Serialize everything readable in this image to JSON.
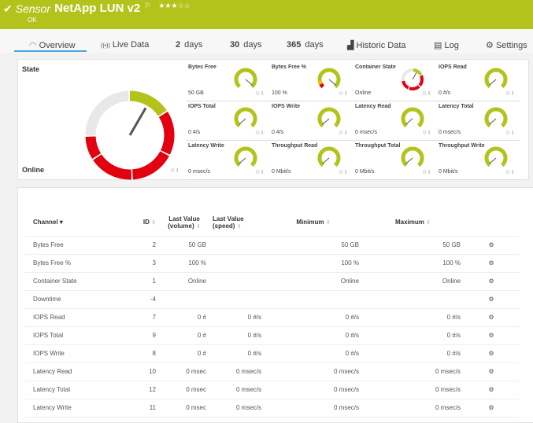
{
  "header": {
    "check_icon": "check-icon",
    "kind": "Sensor",
    "name": "NetApp LUN v2",
    "flag_icon": "flag-icon",
    "stars": "★★★☆☆",
    "priority": 3,
    "status": "OK",
    "color": "#b4c31b"
  },
  "tabs": [
    {
      "label": "Overview",
      "icon": "◠"
    },
    {
      "label": "Live Data",
      "icon": "((•))"
    },
    {
      "num": "2",
      "label": "days"
    },
    {
      "num": "30",
      "label": "days"
    },
    {
      "num": "365",
      "label": "days"
    },
    {
      "label": "Historic Data",
      "icon": "▟"
    },
    {
      "label": "Log",
      "icon": "▤"
    },
    {
      "label": "Settings",
      "icon": "⚙"
    }
  ],
  "overview": {
    "state_label": "State",
    "state_value": "Online"
  },
  "gauges": [
    {
      "title": "Bytes Free",
      "value": "50 GB",
      "type": "full"
    },
    {
      "title": "Bytes Free %",
      "value": "100 %",
      "type": "warn"
    },
    {
      "title": "Container State",
      "value": "Online",
      "type": "state"
    },
    {
      "title": "IOPS Read",
      "value": "0 #/s",
      "type": "zero"
    },
    {
      "title": "IOPS Total",
      "value": "0 #/s",
      "type": "zero"
    },
    {
      "title": "IOPS Write",
      "value": "0 #/s",
      "type": "zero"
    },
    {
      "title": "Latency Read",
      "value": "0 msec/s",
      "type": "zero"
    },
    {
      "title": "Latency Total",
      "value": "0 msec/s",
      "type": "zero"
    },
    {
      "title": "Latency Write",
      "value": "0 msec/s",
      "type": "zero"
    },
    {
      "title": "Throughput Read",
      "value": "0 Mbit/s",
      "type": "zero"
    },
    {
      "title": "Throughput Total",
      "value": "0 Mbit/s",
      "type": "zero"
    },
    {
      "title": "Throughput Write",
      "value": "0 Mbit/s",
      "type": "zero"
    }
  ],
  "table": {
    "headers": {
      "channel": "Channel ▾",
      "id": "ID",
      "lv_volume": "Last Value (volume)",
      "lv_speed": "Last Value (speed)",
      "minimum": "Minimum",
      "maximum": "Maximum"
    },
    "rows": [
      [
        "Bytes Free",
        "2",
        "50 GB",
        "",
        "50 GB",
        "50 GB"
      ],
      [
        "Bytes Free %",
        "3",
        "100 %",
        "",
        "100 %",
        "100 %"
      ],
      [
        "Container State",
        "1",
        "Online",
        "",
        "Online",
        "Online"
      ],
      [
        "Downtime",
        "-4",
        "",
        "",
        "",
        ""
      ],
      [
        "IOPS Read",
        "7",
        "0 #",
        "0 #/s",
        "0 #/s",
        "0 #/s"
      ],
      [
        "IOPS Total",
        "9",
        "0 #",
        "0 #/s",
        "0 #/s",
        "0 #/s"
      ],
      [
        "IOPS Write",
        "8",
        "0 #",
        "0 #/s",
        "0 #/s",
        "0 #/s"
      ],
      [
        "Latency Read",
        "10",
        "0 msec",
        "0 msec/s",
        "0 msec/s",
        "0 msec/s"
      ],
      [
        "Latency Total",
        "12",
        "0 msec",
        "0 msec/s",
        "0 msec/s",
        "0 msec/s"
      ],
      [
        "Latency Write",
        "11",
        "0 msec",
        "0 msec/s",
        "0 msec/s",
        "0 msec/s"
      ]
    ]
  },
  "colors": {
    "green": "#b4c31b",
    "red": "#e3000f",
    "gray": "#e8e8e8",
    "warn": "#f5b800"
  }
}
